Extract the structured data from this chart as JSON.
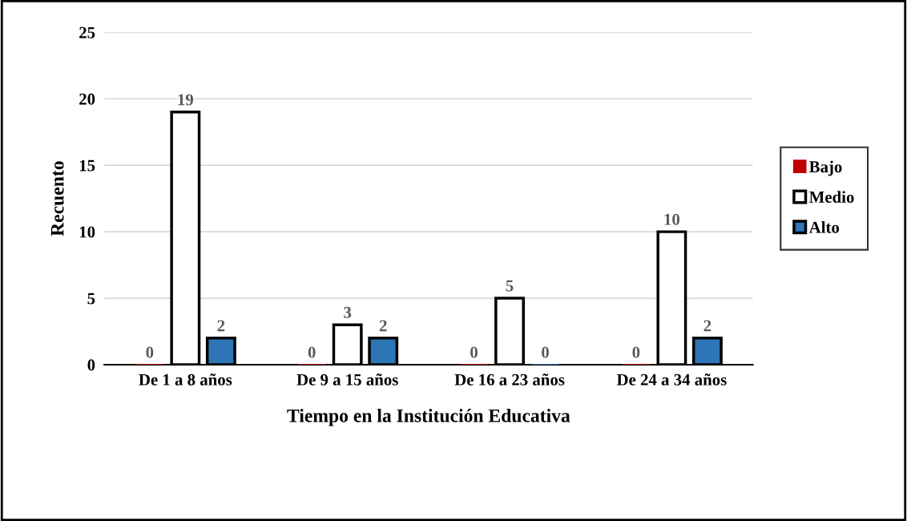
{
  "chart_data": {
    "type": "bar",
    "xlabel": "Tiempo en la Institución Educativa",
    "ylabel": "Recuento",
    "categories": [
      "De 1 a 8 años",
      "De 9 a 15 años",
      "De 16 a 23 años",
      "De 24 a 34 años"
    ],
    "series": [
      {
        "name": "Bajo",
        "color": "#c00000",
        "values": [
          0,
          0,
          0,
          0
        ]
      },
      {
        "name": "Medio",
        "color": "#ffffff",
        "values": [
          19,
          3,
          5,
          10
        ]
      },
      {
        "name": "Alto",
        "color": "#2e75b6",
        "values": [
          2,
          2,
          0,
          2
        ]
      }
    ],
    "ylim": [
      0,
      25
    ],
    "yticks": [
      0,
      5,
      10,
      15,
      20,
      25
    ],
    "grid": "y",
    "legend": "right",
    "data_labels": true
  }
}
